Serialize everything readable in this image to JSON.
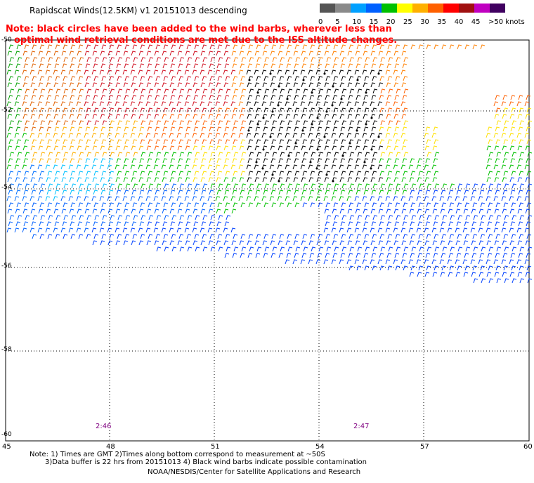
{
  "title": "Rapidscat Winds(12.5KM) v1 20151013 descending",
  "note_red": [
    "Note: black circles have been added to the wind barbs, wherever less than",
    "optimal wind retrieval conditions are met due to the ISS altitude changes."
  ],
  "color_scale": {
    "labels": [
      "0",
      "5",
      "10",
      "15",
      "20",
      "25",
      "30",
      "35",
      "40",
      "45",
      ">50 knots"
    ],
    "colors": [
      "#555555",
      "#8a8a8a",
      "#00a0ff",
      "#0060ff",
      "#00c000",
      "#ffff00",
      "#ffb000",
      "#ff6000",
      "#ff0000",
      "#a01010",
      "#c000c0",
      "#400060"
    ]
  },
  "map": {
    "lat_labels": [
      "-50",
      "-52",
      "-54",
      "-56",
      "-58",
      "-60"
    ],
    "lon_labels": [
      "45",
      "48",
      "51",
      "54",
      "57",
      "60"
    ],
    "times": [
      "2:46",
      "2:47"
    ]
  },
  "footer": [
    "Note: 1) Times are GMT 2)Times along bottom correspond to measurement at ~50S",
    "3)Data buffer is 22 hrs from 20151013 4) Black wind barbs indicate possible contamination",
    "NOAA/NESDIS/Center for Satellite Applications and Research"
  ]
}
